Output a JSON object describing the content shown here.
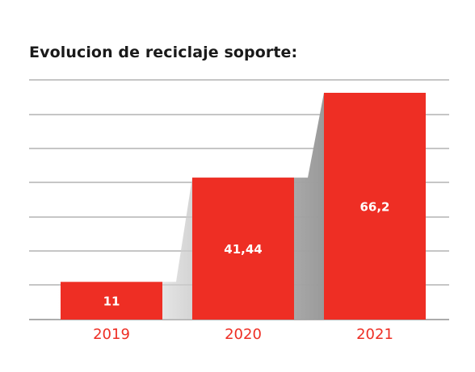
{
  "chart_data": {
    "type": "bar",
    "title": "Evolucion de reciclaje soporte:",
    "categories": [
      "2019",
      "2020",
      "2021"
    ],
    "values": [
      11,
      41.44,
      66.2
    ],
    "value_labels": [
      "11",
      "41,44",
      "66,2"
    ],
    "ylim": [
      0,
      66.2
    ],
    "grid": true,
    "bar_color": "#ee2e24",
    "label_color": "#ffffff",
    "category_label_color": "#ee2e24",
    "shadow_color": "#a6a6a6"
  }
}
